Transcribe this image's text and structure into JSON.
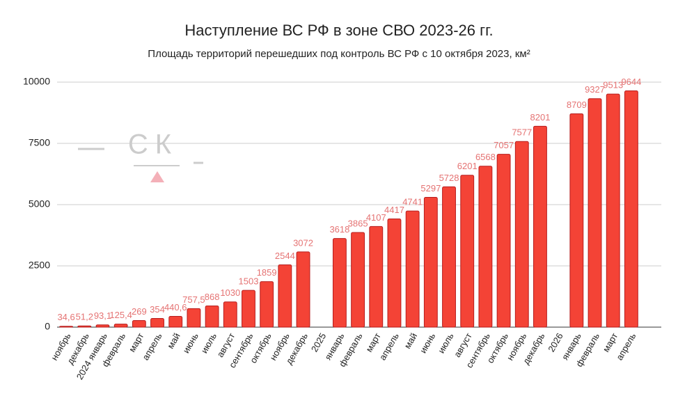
{
  "chart_data": {
    "type": "bar",
    "title": "Наступление ВС РФ в зоне СВО 2023-26 гг.",
    "subtitle": "Площадь территорий перешедших под контроль ВС РФ с 10 октября 2023, км²",
    "watermark": "СК",
    "categories": [
      "ноябрь",
      "декабрь",
      "2024 январь",
      "февраль",
      "март",
      "апрель",
      "май",
      "июнь",
      "июль",
      "август",
      "сентябрь",
      "октябрь",
      "ноябрь",
      "декабрь",
      "2025",
      "январь",
      "февраль",
      "март",
      "апрель",
      "май",
      "июнь",
      "июль",
      "август",
      "сентябрь",
      "октябрь",
      "ноябрь",
      "декабрь",
      "2026",
      "январь",
      "февраль",
      "март",
      "апрель"
    ],
    "values": [
      34.6,
      51.2,
      93.1,
      125.4,
      269,
      354,
      440.6,
      757.5,
      868,
      1030,
      1503,
      1859,
      2544,
      3072,
      null,
      3618,
      3865,
      4107,
      4417,
      4741,
      5297,
      5728,
      6201,
      6568,
      7057,
      7577,
      8201,
      null,
      8709,
      9327,
      9513,
      9644
    ],
    "value_labels": [
      "34,6",
      "51,2",
      "93,1",
      "125,4",
      "269",
      "354",
      "440,6",
      "757,5",
      "868",
      "1030",
      "1503",
      "1859",
      "2544",
      "3072",
      null,
      "3618",
      "3865",
      "4107",
      "4417",
      "4741",
      "5297",
      "5728",
      "6201",
      "6568",
      "7057",
      "7577",
      "8201",
      null,
      "8709",
      "9327",
      "9513",
      "9644"
    ],
    "color": "#f44336",
    "ylim": [
      0,
      10000
    ],
    "yticks": [
      0,
      2500,
      5000,
      7500,
      10000
    ],
    "grid": true
  }
}
